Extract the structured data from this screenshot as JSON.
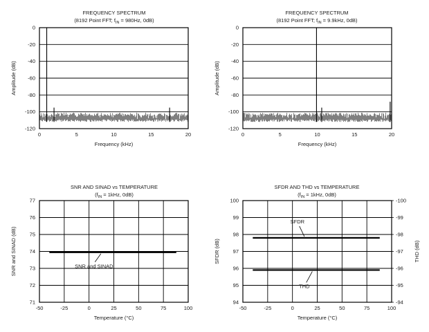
{
  "chart_data": [
    {
      "type": "line",
      "title": "FREQUENCY SPECTRUM",
      "subtitle": "(8192 Point FFT; fIN = 980Hz, 0dB)",
      "xlabel": "Frequency (kHz)",
      "ylabel": "Amplitude (dB)",
      "xlim": [
        0,
        20
      ],
      "ylim": [
        -120,
        0
      ],
      "xticks": [
        "0",
        "5",
        "10",
        "15",
        "20"
      ],
      "yticks": [
        "0",
        "-20",
        "-40",
        "-60",
        "-80",
        "-100",
        "-120"
      ],
      "grid": "horizontal",
      "series": [
        {
          "description": "fundamental tone at 0dB plus noise floor near -100 to -110dB",
          "fundamental": {
            "x": 0.98,
            "y": 0
          },
          "noise_floor_db": [
            -112,
            -101
          ],
          "spurs": [
            {
              "x": 1.96,
              "y": -95
            },
            {
              "x": 17.5,
              "y": -95
            }
          ]
        }
      ]
    },
    {
      "type": "line",
      "title": "FREQUENCY SPECTRUM",
      "subtitle": "(8192 Point FFT; fIN = 9.9kHz, 0dB)",
      "xlabel": "Frequency (kHz)",
      "ylabel": "Amplitude (dB)",
      "xlim": [
        0,
        20
      ],
      "ylim": [
        -120,
        0
      ],
      "xticks": [
        "0",
        "5",
        "10",
        "15",
        "20"
      ],
      "yticks": [
        "0",
        "-20",
        "-40",
        "-60",
        "-80",
        "-100",
        "-120"
      ],
      "grid": "horizontal",
      "series": [
        {
          "description": "fundamental tone at 0dB plus noise floor near -100 to -110dB",
          "fundamental": {
            "x": 9.9,
            "y": 0
          },
          "noise_floor_db": [
            -112,
            -101
          ],
          "spurs": [
            {
              "x": 10.6,
              "y": -95
            },
            {
              "x": 19.8,
              "y": -88
            }
          ]
        }
      ]
    },
    {
      "type": "line",
      "title": "SNR AND SINAD vs TEMPERATURE",
      "subtitle": "(fIN = 1kHz, 0dB)",
      "xlabel": "Temperature (°C)",
      "ylabel": "SNR and SINAD (dB)",
      "xlim": [
        -50,
        100
      ],
      "ylim": [
        71,
        77
      ],
      "xticks": [
        "-50",
        "-25",
        "0",
        "25",
        "50",
        "75",
        "100"
      ],
      "yticks": [
        "77",
        "76",
        "75",
        "74",
        "73",
        "72",
        "71"
      ],
      "grid": "both",
      "series": [
        {
          "name": "SNR and SINAD",
          "x": [
            -40,
            88
          ],
          "y": [
            73.95,
            73.95
          ]
        }
      ]
    },
    {
      "type": "line",
      "title": "SFDR AND THD vs TEMPERATURE",
      "subtitle": "(fIN = 1kHz, 0dB)",
      "xlabel": "Temperature (°C)",
      "ylabel": "SFDR (dB)",
      "ylabel_right": "THD (dB)",
      "xlim": [
        -50,
        100
      ],
      "ylim": [
        94,
        100
      ],
      "ylim_right": [
        -94,
        -100
      ],
      "xticks": [
        "-50",
        "-25",
        "0",
        "25",
        "50",
        "75",
        "100"
      ],
      "yticks": [
        "100",
        "99",
        "98",
        "97",
        "96",
        "95",
        "94"
      ],
      "yticks_right": [
        "-100",
        "-99",
        "-98",
        "-97",
        "-96",
        "-95",
        "-94"
      ],
      "grid": "both",
      "series": [
        {
          "name": "SFDR",
          "x": [
            -40,
            88
          ],
          "y": [
            97.8,
            97.8
          ]
        },
        {
          "name": "THD",
          "x": [
            -40,
            88
          ],
          "y_right": [
            -95.9,
            -95.9
          ]
        }
      ]
    }
  ],
  "text": {
    "c1_title": "FREQUENCY SPECTRUM",
    "c1_sub_a": "(8192 Point FFT; f",
    "c1_sub_sub": "IN",
    "c1_sub_b": " = 980Hz, 0dB)",
    "c2_title": "FREQUENCY SPECTRUM",
    "c2_sub_a": "(8192 Point FFT; f",
    "c2_sub_sub": "IN",
    "c2_sub_b": " = 9.9kHz, 0dB)",
    "c3_title": "SNR AND SINAD vs TEMPERATURE",
    "c3_sub_a": "(f",
    "c3_sub_sub": "IN",
    "c3_sub_b": " = 1kHz, 0dB)",
    "c4_title": "SFDR AND THD vs TEMPERATURE",
    "c4_sub_a": "(f",
    "c4_sub_sub": "IN",
    "c4_sub_b": " = 1kHz, 0dB)"
  }
}
